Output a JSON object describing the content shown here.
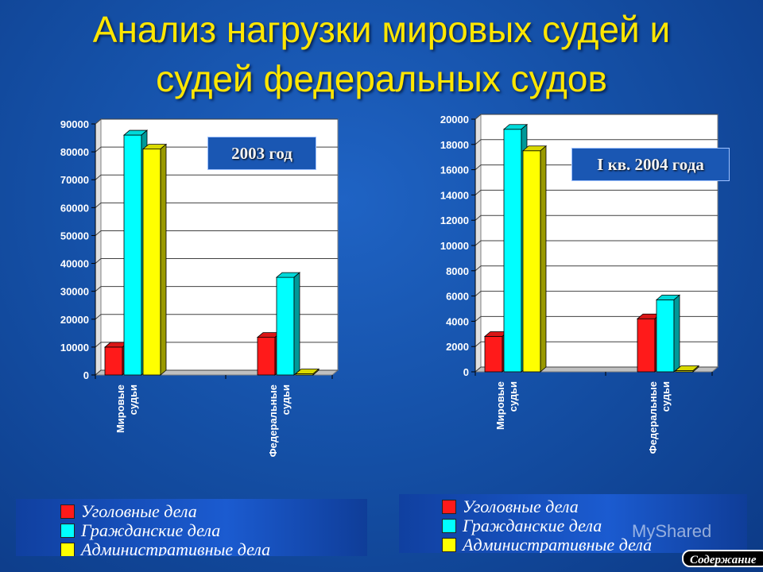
{
  "title_line1": "Анализ нагрузки мировых судей и",
  "title_line2": "судей федеральных судов",
  "colors": {
    "criminal": "#ff1a1a",
    "civil": "#00ffff",
    "admin": "#ffff00",
    "axis_bg": "#ffffff"
  },
  "chart_data": [
    {
      "type": "bar",
      "title": "2003 год",
      "categories": [
        "Мировые судьи",
        "Федеральные судьи"
      ],
      "series": [
        {
          "name": "Уголовные дела",
          "values": [
            10000,
            13500
          ]
        },
        {
          "name": "Гражданские дела",
          "values": [
            86000,
            35000
          ]
        },
        {
          "name": "Административные дела",
          "values": [
            81000,
            0
          ]
        }
      ],
      "yticks": [
        "0",
        "10000",
        "20000",
        "30000",
        "40000",
        "50000",
        "60000",
        "70000",
        "80000",
        "90000"
      ],
      "ylim": [
        0,
        90000
      ],
      "grid": true,
      "legend": [
        "Уголовные дела",
        "Гражданские дела",
        "Административные дела"
      ]
    },
    {
      "type": "bar",
      "title": "I кв. 2004 года",
      "categories": [
        "Мировые судьи",
        "Федеральные судьи"
      ],
      "series": [
        {
          "name": "Уголовные дела",
          "values": [
            2800,
            4200
          ]
        },
        {
          "name": "Гражданские дела",
          "values": [
            19200,
            5700
          ]
        },
        {
          "name": "Административные дела",
          "values": [
            17500,
            0
          ]
        }
      ],
      "yticks": [
        "0",
        "2000",
        "4000",
        "6000",
        "8000",
        "10000",
        "12000",
        "14000",
        "16000",
        "18000",
        "20000"
      ],
      "ylim": [
        0,
        20000
      ],
      "grid": true,
      "legend": [
        "Уголовные дела",
        "Гражданские дела",
        "Административные дела"
      ]
    }
  ],
  "category_lines": [
    [
      "Мировые",
      "судьи"
    ],
    [
      "Федеральные",
      "судьи"
    ]
  ],
  "contents_button": "Содержание",
  "watermark": "MyShared"
}
